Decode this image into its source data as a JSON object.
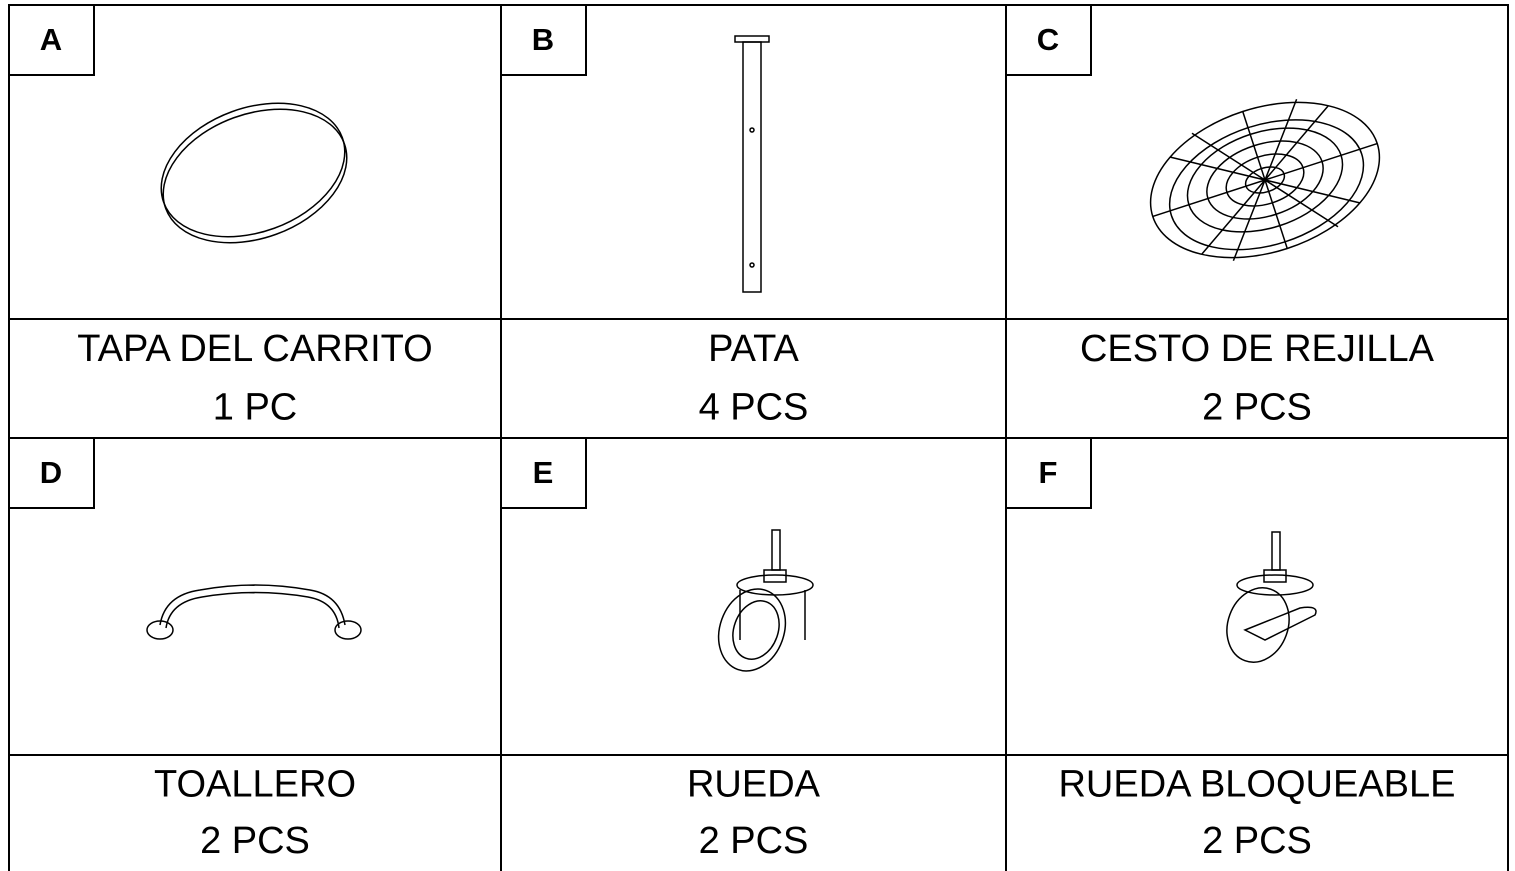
{
  "parts": [
    {
      "letter": "A",
      "name": "TAPA DEL CARRITO",
      "qty": "1 PC"
    },
    {
      "letter": "B",
      "name": "PATA",
      "qty": "4 PCS"
    },
    {
      "letter": "C",
      "name": "CESTO DE REJILLA",
      "qty": "2 PCS"
    },
    {
      "letter": "D",
      "name": "TOALLERO",
      "qty": "2 PCS"
    },
    {
      "letter": "E",
      "name": "RUEDA",
      "qty": "2 PCS"
    },
    {
      "letter": "F",
      "name": "RUEDA BLOQUEABLE",
      "qty": "2 PCS"
    }
  ]
}
